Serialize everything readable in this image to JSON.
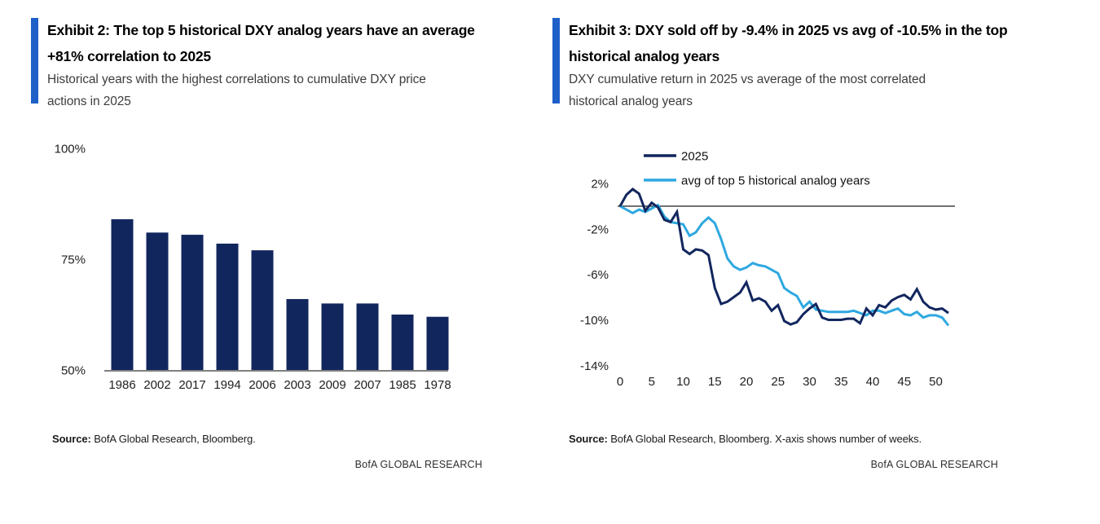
{
  "colors": {
    "accent_blue": "#1E5FC8",
    "navy": "#12265E",
    "light_blue": "#2EA8E0"
  },
  "exhibit2": {
    "title_lines": [
      "Exhibit 2: The top 5 historical DXY analog years have an average",
      "+81% correlation to 2025"
    ],
    "subtitle_lines": [
      "Historical years with the highest correlations to cumulative DXY price",
      "actions in 2025"
    ],
    "source_label": "Source:",
    "source_text": " BofA Global Research, Bloomberg.",
    "brand": "BofA GLOBAL RESEARCH"
  },
  "exhibit3": {
    "title_lines": [
      "Exhibit 3: DXY sold off by -9.4% in 2025 vs avg of -10.5% in the top",
      "historical analog years"
    ],
    "subtitle_lines": [
      "DXY cumulative return in 2025 vs average of the most correlated",
      "historical analog years"
    ],
    "source_label": "Source:",
    "source_text": " BofA Global Research, Bloomberg. X-axis shows number of weeks.",
    "brand": "BofA GLOBAL RESEARCH"
  },
  "chart_data": [
    {
      "type": "bar",
      "title": "Exhibit 2: The top 5 historical DXY analog years have an average +81% correlation to 2025",
      "categories": [
        "1986",
        "2002",
        "2017",
        "1994",
        "2006",
        "2003",
        "2009",
        "2007",
        "1985",
        "1978"
      ],
      "values": [
        84,
        81,
        80.5,
        78.5,
        77,
        66,
        65,
        65,
        62.5,
        62
      ],
      "xlabel": "",
      "ylabel": "",
      "ylim": [
        50,
        100
      ],
      "yticks": [
        100,
        75,
        50
      ],
      "ytick_labels": [
        "100%",
        "75%",
        "50%"
      ],
      "grid": false,
      "bar_color": "#12265E"
    },
    {
      "type": "line",
      "title": "Exhibit 3: DXY sold off by -9.4% in 2025 vs avg of -10.5% in the top historical analog years",
      "xlabel": "number of weeks",
      "ylabel": "",
      "ylim": [
        -14,
        2
      ],
      "yticks": [
        2,
        -2,
        -6,
        -10,
        -14
      ],
      "ytick_labels": [
        "2%",
        "-2%",
        "-6%",
        "-10%",
        "-14%"
      ],
      "xticks": [
        0,
        5,
        10,
        15,
        20,
        25,
        30,
        35,
        40,
        45,
        50
      ],
      "zero_line": true,
      "grid": false,
      "legend_position": "top-left",
      "x": [
        0,
        1,
        2,
        3,
        4,
        5,
        6,
        7,
        8,
        9,
        10,
        11,
        12,
        13,
        14,
        15,
        16,
        17,
        18,
        19,
        20,
        21,
        22,
        23,
        24,
        25,
        26,
        27,
        28,
        29,
        30,
        31,
        32,
        33,
        34,
        35,
        36,
        37,
        38,
        39,
        40,
        41,
        42,
        43,
        44,
        45,
        46,
        47,
        48,
        49,
        50,
        51,
        52
      ],
      "series": [
        {
          "name": "avg of top 5 historical analog years",
          "color": "#2EA8E0",
          "values": [
            0,
            -0.3,
            -0.6,
            -0.3,
            -0.5,
            -0.2,
            0.1,
            -0.9,
            -1.4,
            -1.5,
            -1.6,
            -2.6,
            -2.3,
            -1.5,
            -1.0,
            -1.5,
            -2.9,
            -4.6,
            -5.3,
            -5.6,
            -5.4,
            -5.0,
            -5.2,
            -5.3,
            -5.6,
            -5.9,
            -7.2,
            -7.6,
            -7.9,
            -8.9,
            -8.4,
            -9.1,
            -9.2,
            -9.3,
            -9.3,
            -9.3,
            -9.3,
            -9.2,
            -9.4,
            -9.6,
            -9.2,
            -9.2,
            -9.4,
            -9.2,
            -9.0,
            -9.5,
            -9.6,
            -9.3,
            -9.8,
            -9.6,
            -9.6,
            -9.8,
            -10.5
          ]
        },
        {
          "name": "2025",
          "color": "#12265E",
          "values": [
            0,
            1.0,
            1.5,
            1.1,
            -0.4,
            0.3,
            -0.1,
            -1.2,
            -1.4,
            -0.5,
            -3.8,
            -4.2,
            -3.8,
            -3.9,
            -4.3,
            -7.2,
            -8.6,
            -8.4,
            -8.0,
            -7.6,
            -6.7,
            -8.3,
            -8.1,
            -8.4,
            -9.2,
            -8.7,
            -10.1,
            -10.4,
            -10.2,
            -9.5,
            -9.0,
            -8.6,
            -9.8,
            -10.0,
            -10.0,
            -10.0,
            -9.9,
            -9.9,
            -10.3,
            -9.0,
            -9.6,
            -8.7,
            -8.9,
            -8.3,
            -8.0,
            -7.8,
            -8.2,
            -7.3,
            -8.4,
            -8.9,
            -9.1,
            -9.0,
            -9.4
          ]
        }
      ],
      "legend_order": [
        "2025",
        "avg of top 5 historical analog years"
      ]
    }
  ]
}
